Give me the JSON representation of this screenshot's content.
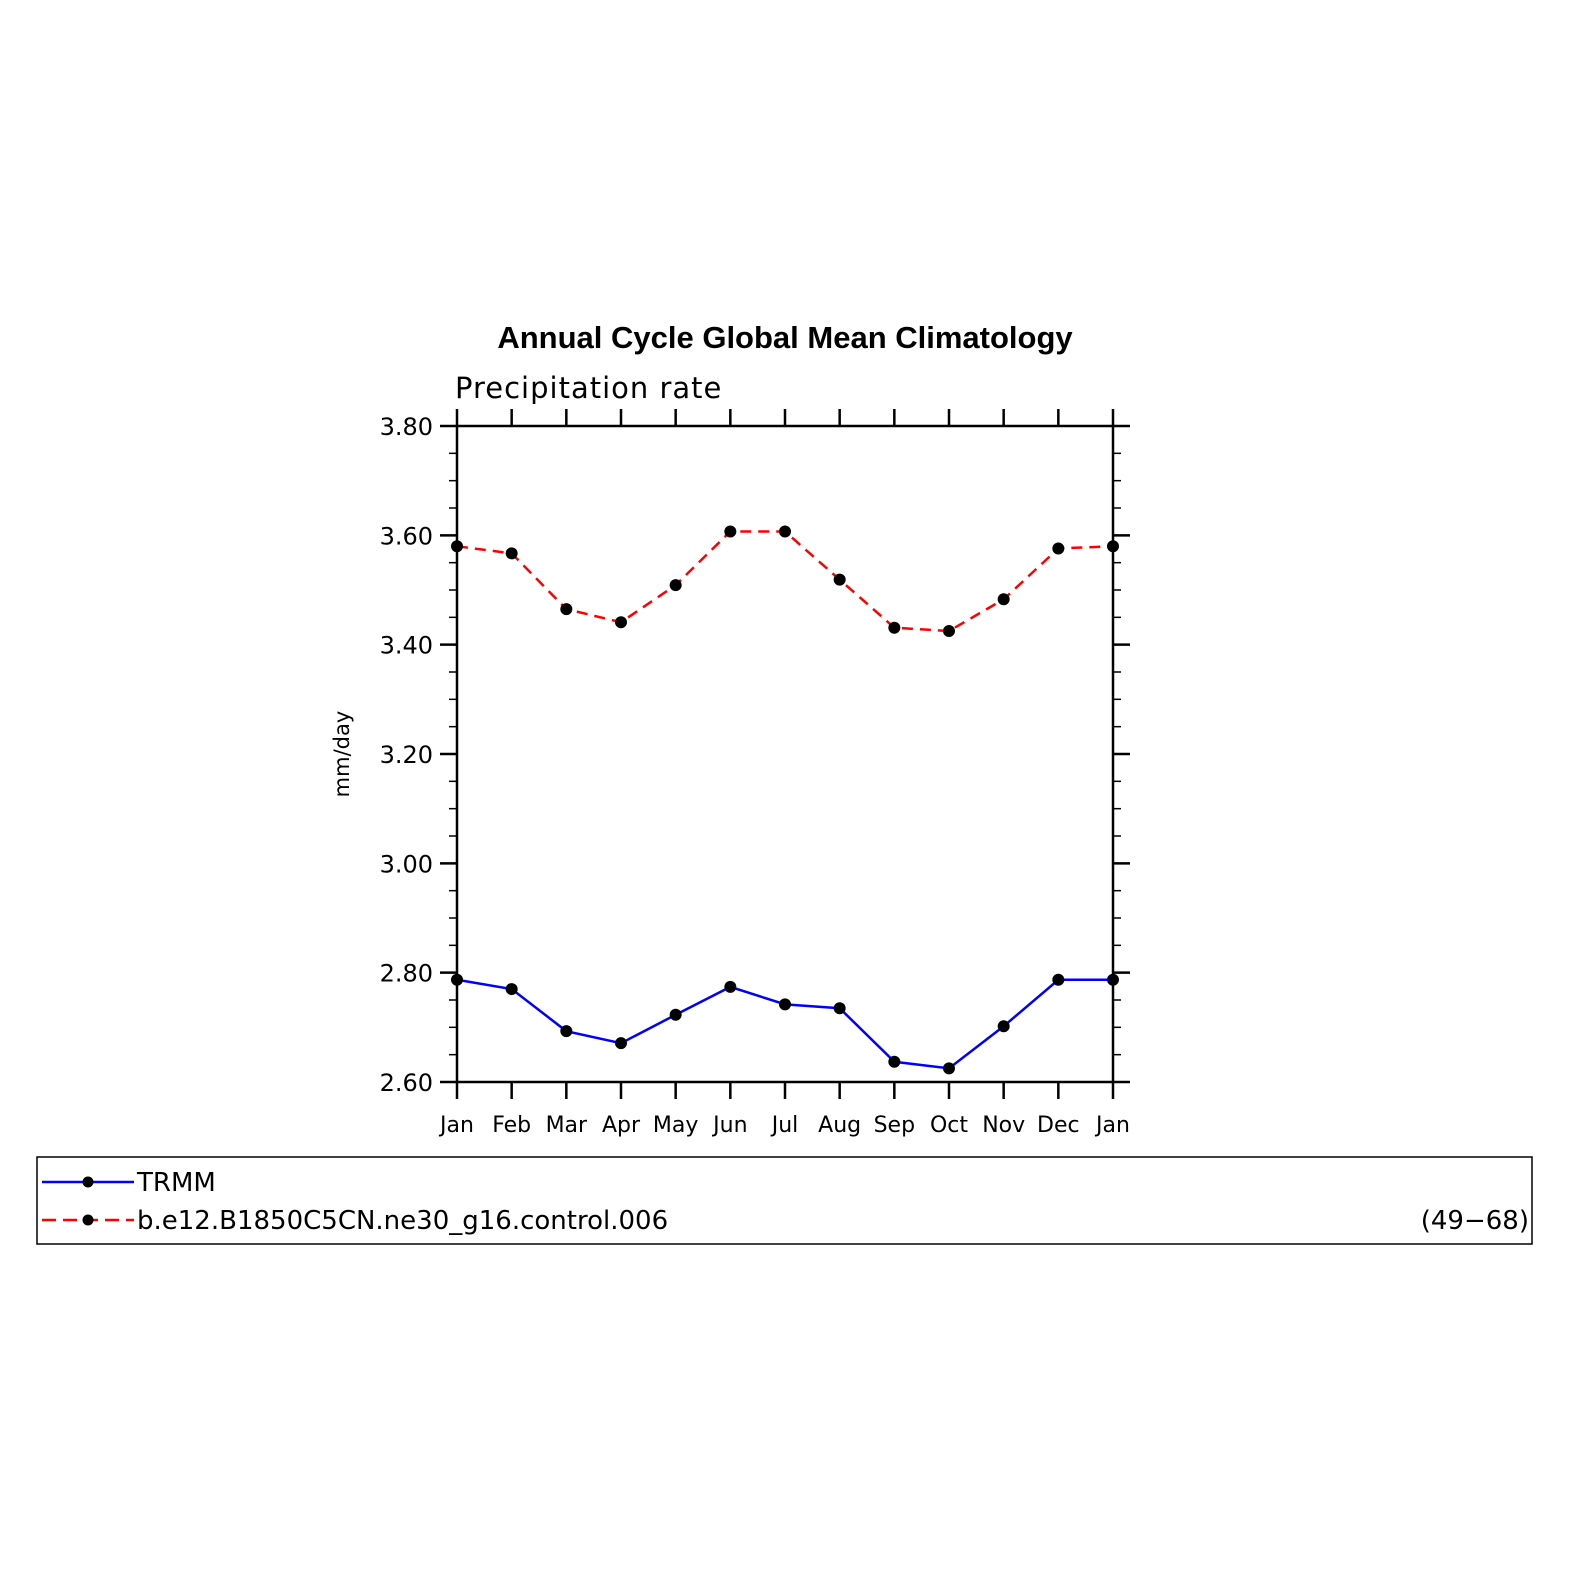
{
  "chart_data": {
    "type": "line",
    "title": "Annual Cycle Global Mean Climatology",
    "subtitle": "Precipitation rate",
    "xlabel": "",
    "ylabel": "mm/day",
    "categories": [
      "Jan",
      "Feb",
      "Mar",
      "Apr",
      "May",
      "Jun",
      "Jul",
      "Aug",
      "Sep",
      "Oct",
      "Nov",
      "Dec",
      "Jan"
    ],
    "ylim": [
      2.6,
      3.8
    ],
    "yticks": [
      "2.60",
      "2.80",
      "3.00",
      "3.20",
      "3.40",
      "3.60",
      "3.80"
    ],
    "grid": false,
    "legend_placement": "below",
    "series": [
      {
        "name": "TRMM",
        "color": "#0000ff",
        "dashed": false,
        "values": [
          2.787,
          2.77,
          2.693,
          2.671,
          2.723,
          2.774,
          2.742,
          2.735,
          2.637,
          2.625,
          2.702,
          2.787,
          2.787
        ]
      },
      {
        "name": "b.e12.B1850C5CN.ne30_g16.control.006",
        "color": "#ff0000",
        "dashed": true,
        "values": [
          3.58,
          3.567,
          3.465,
          3.441,
          3.509,
          3.607,
          3.607,
          3.519,
          3.431,
          3.425,
          3.483,
          3.576,
          3.58
        ]
      }
    ],
    "legend_note": "(49−68)"
  }
}
